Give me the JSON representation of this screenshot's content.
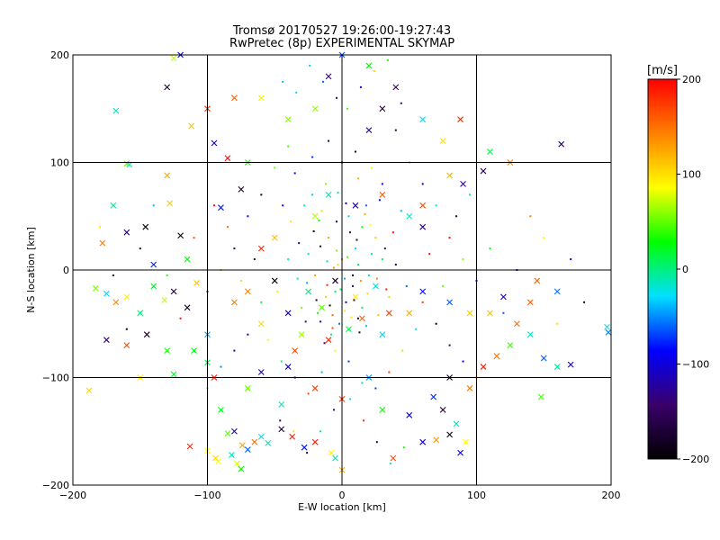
{
  "chart_data": {
    "type": "scatter",
    "title": "Tromsø 20170527 19:26:00-19:27:43",
    "subtitle": "RwPretec (8p) EXPERIMENTAL SKYMAP",
    "xlabel": "E-W location [km]",
    "ylabel": "N-S location [km]",
    "xlim": [
      -200,
      200
    ],
    "ylim": [
      -200,
      200
    ],
    "x_ticks": [
      -200,
      -100,
      0,
      100,
      200
    ],
    "y_ticks": [
      -200,
      -100,
      0,
      100,
      200
    ],
    "grid": true,
    "colorbar": {
      "label": "[m/s]",
      "range": [
        -200,
        200
      ],
      "ticks": [
        200,
        100,
        0,
        -100,
        -200
      ],
      "colors": [
        "#000000",
        "#3a006a",
        "#0000ff",
        "#00e0ff",
        "#00ff00",
        "#ffff00",
        "#ff8000",
        "#ff0000"
      ]
    },
    "series": [
      {
        "marker": "x",
        "points": [
          [
            -183,
            -17
          ],
          [
            -175,
            -22
          ],
          [
            -168,
            -30
          ],
          [
            -160,
            -25
          ],
          [
            -150,
            -40
          ],
          [
            -140,
            -15
          ],
          [
            -132,
            -28
          ],
          [
            -125,
            -20
          ],
          [
            -115,
            -35
          ],
          [
            -108,
            -12
          ],
          [
            -178,
            25
          ],
          [
            -160,
            35
          ],
          [
            -146,
            40
          ],
          [
            -170,
            60
          ],
          [
            -128,
            62
          ],
          [
            -90,
            58
          ],
          [
            -75,
            75
          ],
          [
            -160,
            99
          ],
          [
            -158,
            98
          ],
          [
            -130,
            88
          ],
          [
            -168,
            148
          ],
          [
            -112,
            134
          ],
          [
            -120,
            200
          ],
          [
            -125,
            197
          ],
          [
            -95,
            118
          ],
          [
            -85,
            104
          ],
          [
            -70,
            100
          ],
          [
            -150,
            -100
          ],
          [
            -125,
            -97
          ],
          [
            -100,
            -86
          ],
          [
            -95,
            -100
          ],
          [
            -188,
            -112
          ],
          [
            -113,
            -164
          ],
          [
            -100,
            -168
          ],
          [
            -92,
            -178
          ],
          [
            -94,
            -175
          ],
          [
            -85,
            -152
          ],
          [
            -80,
            -150
          ],
          [
            -74,
            -163
          ],
          [
            -82,
            -172
          ],
          [
            -78,
            -180
          ],
          [
            -70,
            -167
          ],
          [
            -65,
            -160
          ],
          [
            -60,
            -155
          ],
          [
            -55,
            -161
          ],
          [
            -75,
            -185
          ],
          [
            -45,
            -148
          ],
          [
            -37,
            -155
          ],
          [
            -28,
            -165
          ],
          [
            -20,
            -160
          ],
          [
            -8,
            -170
          ],
          [
            -5,
            -175
          ],
          [
            0,
            -186
          ],
          [
            38,
            -175
          ],
          [
            60,
            -160
          ],
          [
            70,
            -158
          ],
          [
            80,
            -153
          ],
          [
            85,
            -143
          ],
          [
            88,
            -170
          ],
          [
            92,
            -160
          ],
          [
            75,
            -130
          ],
          [
            68,
            -118
          ],
          [
            80,
            -100
          ],
          [
            95,
            -110
          ],
          [
            105,
            -90
          ],
          [
            115,
            -80
          ],
          [
            125,
            -70
          ],
          [
            140,
            -60
          ],
          [
            150,
            -82
          ],
          [
            160,
            -90
          ],
          [
            148,
            -118
          ],
          [
            170,
            -88
          ],
          [
            197,
            -53
          ],
          [
            198,
            -58
          ],
          [
            163,
            117
          ],
          [
            125,
            100
          ],
          [
            110,
            110
          ],
          [
            105,
            92
          ],
          [
            90,
            80
          ],
          [
            80,
            88
          ],
          [
            75,
            120
          ],
          [
            88,
            140
          ],
          [
            110,
            -40
          ],
          [
            120,
            -25
          ],
          [
            140,
            -30
          ],
          [
            130,
            -50
          ],
          [
            145,
            -10
          ],
          [
            160,
            -20
          ],
          [
            95,
            -40
          ],
          [
            80,
            -30
          ],
          [
            60,
            -20
          ],
          [
            50,
            -40
          ],
          [
            30,
            -60
          ],
          [
            -30,
            -60
          ],
          [
            -40,
            -40
          ],
          [
            -60,
            -50
          ],
          [
            -80,
            -30
          ],
          [
            -70,
            -20
          ],
          [
            -50,
            -10
          ],
          [
            -60,
            20
          ],
          [
            -50,
            30
          ],
          [
            -20,
            50
          ],
          [
            -10,
            70
          ],
          [
            10,
            60
          ],
          [
            30,
            70
          ],
          [
            50,
            50
          ],
          [
            60,
            40
          ],
          [
            20,
            -100
          ],
          [
            -20,
            -110
          ],
          [
            -40,
            -90
          ],
          [
            -60,
            -95
          ],
          [
            -70,
            -110
          ],
          [
            -90,
            -130
          ],
          [
            -45,
            -125
          ],
          [
            0,
            -120
          ],
          [
            30,
            -130
          ],
          [
            50,
            -135
          ],
          [
            20,
            130
          ],
          [
            30,
            150
          ],
          [
            40,
            170
          ],
          [
            60,
            140
          ],
          [
            -20,
            150
          ],
          [
            -40,
            140
          ],
          [
            -60,
            160
          ],
          [
            -80,
            160
          ],
          [
            -100,
            150
          ],
          [
            -130,
            170
          ],
          [
            0,
            200
          ],
          [
            20,
            190
          ],
          [
            -10,
            180
          ],
          [
            60,
            60
          ],
          [
            -120,
            32
          ],
          [
            -115,
            10
          ],
          [
            -140,
            5
          ],
          [
            -175,
            -65
          ],
          [
            -160,
            -70
          ],
          [
            -145,
            -60
          ],
          [
            -130,
            -75
          ],
          [
            -110,
            -75
          ],
          [
            -100,
            -60
          ],
          [
            -5,
            -10
          ],
          [
            10,
            -25
          ],
          [
            -15,
            -35
          ],
          [
            15,
            -45
          ],
          [
            25,
            -15
          ],
          [
            -25,
            -20
          ],
          [
            5,
            -55
          ],
          [
            -10,
            -65
          ],
          [
            35,
            -40
          ],
          [
            -35,
            -75
          ]
        ]
      },
      {
        "marker": "dot",
        "points": [
          [
            -5,
            -20
          ],
          [
            3,
            -30
          ],
          [
            -12,
            -25
          ],
          [
            8,
            -15
          ],
          [
            -18,
            -40
          ],
          [
            12,
            -45
          ],
          [
            -2,
            -50
          ],
          [
            15,
            -35
          ],
          [
            -8,
            -60
          ],
          [
            20,
            -5
          ],
          [
            -20,
            -5
          ],
          [
            0,
            10
          ],
          [
            10,
            20
          ],
          [
            -10,
            30
          ],
          [
            15,
            40
          ],
          [
            5,
            50
          ],
          [
            -15,
            55
          ],
          [
            25,
            30
          ],
          [
            30,
            10
          ],
          [
            -25,
            15
          ],
          [
            35,
            -25
          ],
          [
            -30,
            -35
          ],
          [
            40,
            5
          ],
          [
            -40,
            10
          ],
          [
            12,
            5
          ],
          [
            -6,
            2
          ],
          [
            22,
            15
          ],
          [
            -16,
            22
          ],
          [
            6,
            35
          ],
          [
            -4,
            45
          ],
          [
            18,
            60
          ],
          [
            -22,
            70
          ],
          [
            30,
            80
          ],
          [
            -35,
            90
          ],
          [
            0,
            100
          ],
          [
            10,
            110
          ],
          [
            -10,
            120
          ],
          [
            40,
            130
          ],
          [
            -40,
            115
          ],
          [
            50,
            100
          ],
          [
            -50,
            95
          ],
          [
            60,
            80
          ],
          [
            -60,
            70
          ],
          [
            70,
            60
          ],
          [
            -70,
            50
          ],
          [
            80,
            30
          ],
          [
            -80,
            20
          ],
          [
            90,
            10
          ],
          [
            -90,
            0
          ],
          [
            100,
            -10
          ],
          [
            -100,
            -20
          ],
          [
            55,
            -55
          ],
          [
            -55,
            -65
          ],
          [
            45,
            -75
          ],
          [
            -45,
            -85
          ],
          [
            35,
            -95
          ],
          [
            -35,
            -100
          ],
          [
            25,
            -110
          ],
          [
            -25,
            -115
          ],
          [
            15,
            -105
          ],
          [
            -15,
            -95
          ],
          [
            5,
            -85
          ],
          [
            -5,
            -75
          ],
          [
            60,
            -30
          ],
          [
            -60,
            -30
          ],
          [
            70,
            -50
          ],
          [
            -70,
            -60
          ],
          [
            80,
            -70
          ],
          [
            -80,
            -75
          ],
          [
            90,
            -85
          ],
          [
            -90,
            -90
          ],
          [
            100,
            -100
          ],
          [
            -100,
            -110
          ],
          [
            8,
            -5
          ],
          [
            -3,
            5
          ],
          [
            14,
            -10
          ],
          [
            -11,
            -14
          ],
          [
            2,
            -38
          ],
          [
            -7,
            -42
          ],
          [
            18,
            -52
          ],
          [
            -16,
            -48
          ],
          [
            26,
            -8
          ],
          [
            -26,
            -12
          ],
          [
            32,
            20
          ],
          [
            -32,
            25
          ],
          [
            38,
            35
          ],
          [
            -38,
            45
          ],
          [
            44,
            55
          ],
          [
            -44,
            60
          ],
          [
            48,
            -15
          ],
          [
            -48,
            -20
          ],
          [
            12,
            85
          ],
          [
            -12,
            80
          ],
          [
            22,
            95
          ],
          [
            -22,
            105
          ],
          [
            28,
            65
          ],
          [
            -28,
            60
          ],
          [
            65,
            15
          ],
          [
            -65,
            10
          ],
          [
            75,
            -15
          ],
          [
            -75,
            -10
          ],
          [
            85,
            50
          ],
          [
            -85,
            40
          ],
          [
            95,
            70
          ],
          [
            -95,
            60
          ],
          [
            110,
            20
          ],
          [
            -110,
            30
          ],
          [
            120,
            -40
          ],
          [
            -120,
            -45
          ],
          [
            130,
            0
          ],
          [
            -130,
            -5
          ],
          [
            6,
            -120
          ],
          [
            -6,
            -130
          ],
          [
            16,
            -140
          ],
          [
            -16,
            -150
          ],
          [
            26,
            -160
          ],
          [
            -26,
            -170
          ],
          [
            36,
            -180
          ],
          [
            -36,
            -150
          ],
          [
            46,
            -165
          ],
          [
            -46,
            -140
          ],
          [
            4,
            150
          ],
          [
            -4,
            160
          ],
          [
            14,
            170
          ],
          [
            -14,
            175
          ],
          [
            24,
            185
          ],
          [
            -24,
            190
          ],
          [
            34,
            195
          ],
          [
            -34,
            165
          ],
          [
            44,
            155
          ],
          [
            -44,
            175
          ],
          [
            140,
            50
          ],
          [
            -140,
            60
          ],
          [
            150,
            30
          ],
          [
            -150,
            20
          ],
          [
            160,
            -50
          ],
          [
            -160,
            -55
          ],
          [
            170,
            10
          ],
          [
            -170,
            -5
          ],
          [
            180,
            -30
          ],
          [
            -180,
            40
          ],
          [
            2,
            -8
          ],
          [
            -1,
            -18
          ],
          [
            9,
            -28
          ],
          [
            -9,
            -33
          ],
          [
            4,
            12
          ],
          [
            -4,
            18
          ],
          [
            11,
            28
          ],
          [
            -11,
            8
          ],
          [
            19,
            -22
          ],
          [
            -19,
            -28
          ],
          [
            7,
            -44
          ],
          [
            -7,
            -54
          ],
          [
            13,
            -58
          ],
          [
            -13,
            -68
          ],
          [
            21,
            42
          ],
          [
            -21,
            36
          ],
          [
            3,
            62
          ],
          [
            -3,
            72
          ],
          [
            17,
            52
          ],
          [
            -17,
            46
          ],
          [
            27,
            -42
          ],
          [
            -27,
            -48
          ],
          [
            33,
            -18
          ],
          [
            -33,
            -8
          ]
        ]
      }
    ]
  }
}
